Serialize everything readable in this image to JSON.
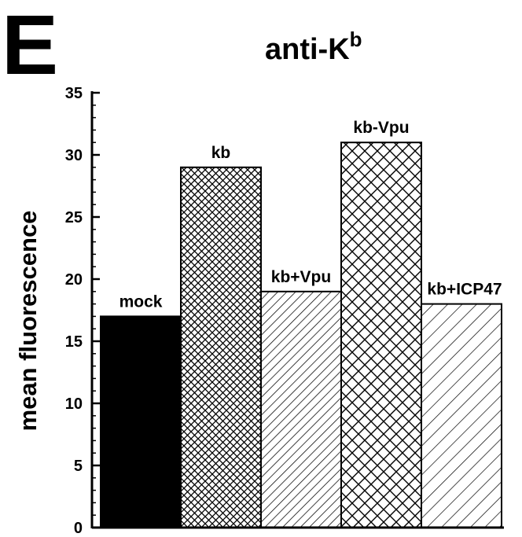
{
  "panel_letter": "E",
  "chart_data": {
    "type": "bar",
    "title": "anti-K",
    "title_superscript": "b",
    "xlabel": "",
    "ylabel": "mean fluorescence",
    "ylim": [
      0,
      35
    ],
    "yticks": [
      0,
      5,
      10,
      15,
      20,
      25,
      30,
      35
    ],
    "categories": [
      "mock",
      "kb",
      "kb+Vpu",
      "kb-Vpu",
      "kb+ICP47"
    ],
    "values": [
      17,
      29,
      19,
      31,
      18
    ],
    "fills": [
      "solid-black",
      "fine-crosshatch",
      "diagonal-hatch",
      "coarse-crosshatch",
      "wide-diagonal-hatch"
    ],
    "grid": false,
    "legend": "none",
    "colors": {
      "bar": "#000000",
      "background": "#ffffff"
    }
  }
}
